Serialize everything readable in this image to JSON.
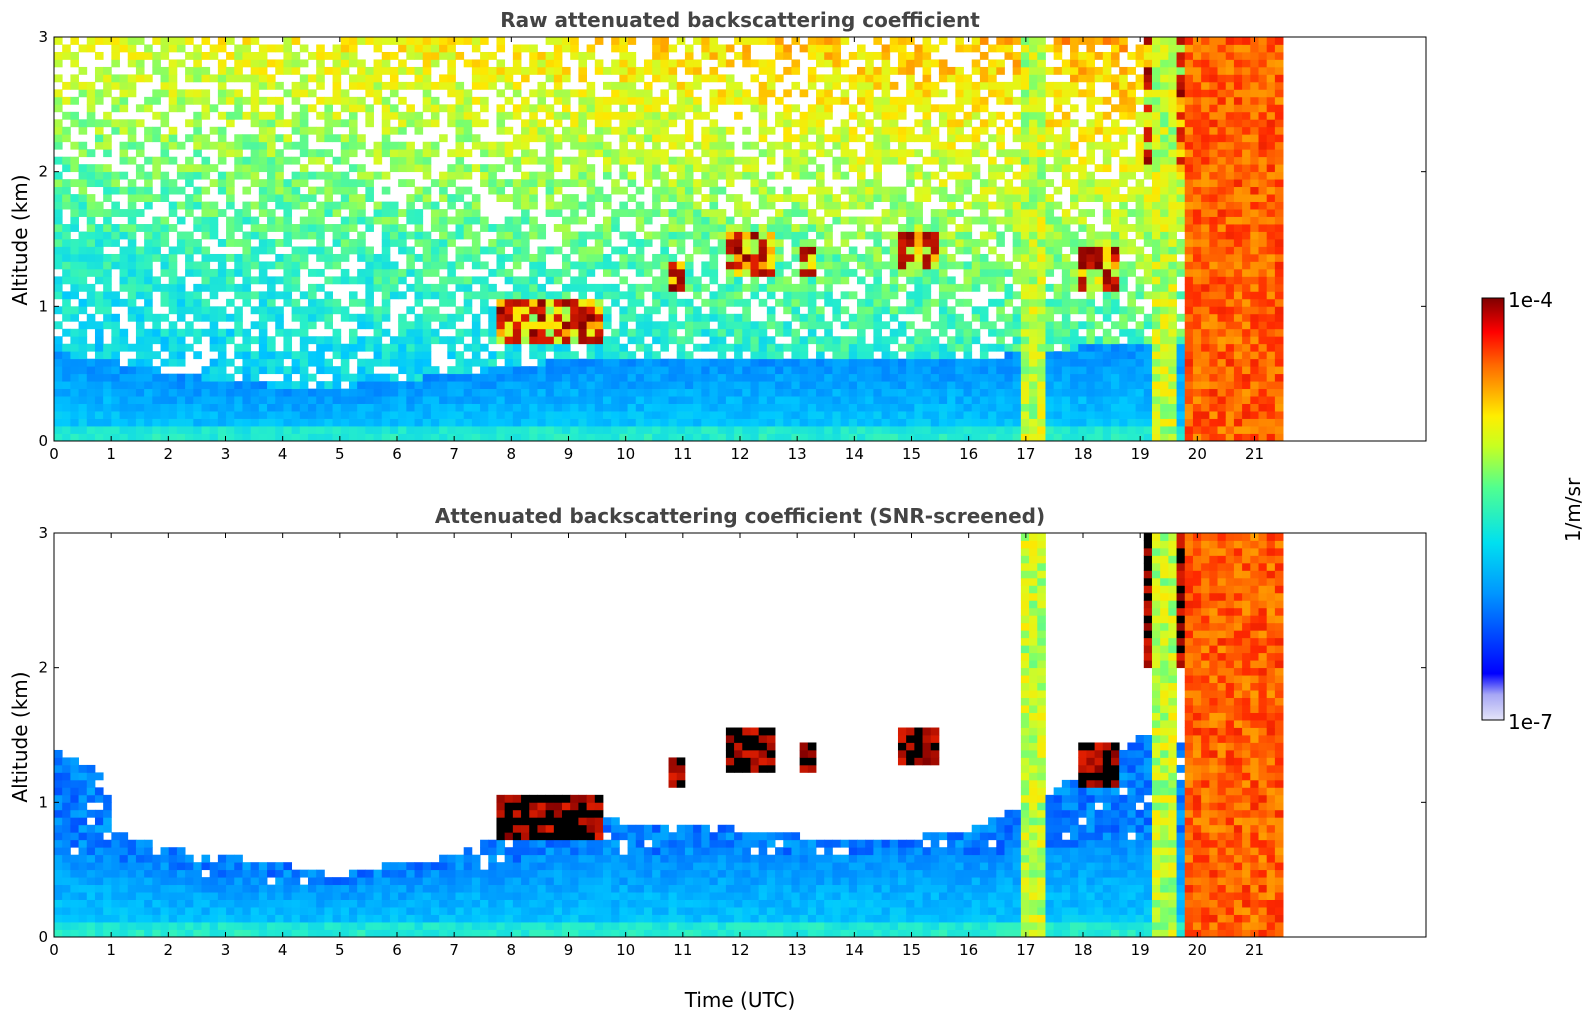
{
  "colorbar": {
    "label": "1/m/sr",
    "max_label": "1e-4",
    "min_label": "1e-7",
    "colormap": "jet",
    "scale": "log"
  },
  "chart_data": [
    {
      "type": "heatmap",
      "title": "Raw attenuated backscattering coefficient",
      "xlabel": "",
      "ylabel": "Altitude (km)",
      "xlim": [
        0,
        24
      ],
      "ylim": [
        0,
        3
      ],
      "xticks": [
        "0",
        "1",
        "2",
        "3",
        "4",
        "5",
        "6",
        "7",
        "8",
        "9",
        "10",
        "11",
        "12",
        "13",
        "14",
        "15",
        "16",
        "17",
        "18",
        "19",
        "20",
        "21"
      ],
      "yticks": [
        "0",
        "1",
        "2",
        "3"
      ],
      "data_end_hour": 21.5,
      "boundary_layer_top_km": [
        [
          0,
          0.65
        ],
        [
          1,
          0.6
        ],
        [
          2,
          0.5
        ],
        [
          3,
          0.45
        ],
        [
          4,
          0.4
        ],
        [
          5,
          0.4
        ],
        [
          6,
          0.45
        ],
        [
          7,
          0.5
        ],
        [
          8,
          0.55
        ],
        [
          9,
          0.6
        ],
        [
          10,
          0.6
        ],
        [
          11,
          0.6
        ],
        [
          12,
          0.62
        ],
        [
          13,
          0.62
        ],
        [
          14,
          0.62
        ],
        [
          15,
          0.62
        ],
        [
          16,
          0.62
        ],
        [
          17,
          0.65
        ],
        [
          18,
          0.7
        ],
        [
          19,
          0.75
        ],
        [
          20,
          0.75
        ],
        [
          21,
          0.75
        ]
      ],
      "cloud_features": [
        {
          "t0": 7.7,
          "t1": 9.6,
          "z0": 0.72,
          "z1": 1.05
        },
        {
          "t0": 10.7,
          "t1": 11.0,
          "z0": 1.1,
          "z1": 1.35
        },
        {
          "t0": 11.8,
          "t1": 12.6,
          "z0": 1.25,
          "z1": 1.55
        },
        {
          "t0": 13.0,
          "t1": 13.3,
          "z0": 1.25,
          "z1": 1.45
        },
        {
          "t0": 14.8,
          "t1": 15.5,
          "z0": 1.3,
          "z1": 1.55
        },
        {
          "t0": 17.9,
          "t1": 18.6,
          "z0": 1.12,
          "z1": 1.45
        },
        {
          "t0": 19.0,
          "t1": 21.5,
          "z0": 2.0,
          "z1": 3.0
        }
      ],
      "precipitation_shafts": [
        {
          "t0": 16.9,
          "t1": 17.4
        },
        {
          "t0": 19.2,
          "t1": 19.6
        },
        {
          "t0": 19.85,
          "t1": 21.45
        }
      ]
    },
    {
      "type": "heatmap",
      "title": "Attenuated backscattering coefficient (SNR-screened)",
      "xlabel": "Time (UTC)",
      "ylabel": "Altitude (km)",
      "xlim": [
        0,
        24
      ],
      "ylim": [
        0,
        3
      ],
      "xticks": [
        "0",
        "1",
        "2",
        "3",
        "4",
        "5",
        "6",
        "7",
        "8",
        "9",
        "10",
        "11",
        "12",
        "13",
        "14",
        "15",
        "16",
        "17",
        "18",
        "19",
        "20",
        "21"
      ],
      "yticks": [
        "0",
        "1",
        "2",
        "3"
      ],
      "data_end_hour": 21.5,
      "screened_top_km": [
        [
          0,
          1.4
        ],
        [
          0.9,
          1.2
        ],
        [
          1,
          0.78
        ],
        [
          2,
          0.65
        ],
        [
          3,
          0.6
        ],
        [
          4,
          0.55
        ],
        [
          5,
          0.45
        ],
        [
          6,
          0.55
        ],
        [
          7,
          0.6
        ],
        [
          7.8,
          0.75
        ],
        [
          9,
          0.95
        ],
        [
          10,
          0.85
        ],
        [
          11,
          0.85
        ],
        [
          12,
          0.8
        ],
        [
          13,
          0.75
        ],
        [
          14,
          0.7
        ],
        [
          15,
          0.75
        ],
        [
          16,
          0.8
        ],
        [
          17,
          1.0
        ],
        [
          18,
          1.2
        ],
        [
          19,
          1.5
        ],
        [
          20,
          1.45
        ],
        [
          21,
          1.5
        ]
      ]
    }
  ]
}
